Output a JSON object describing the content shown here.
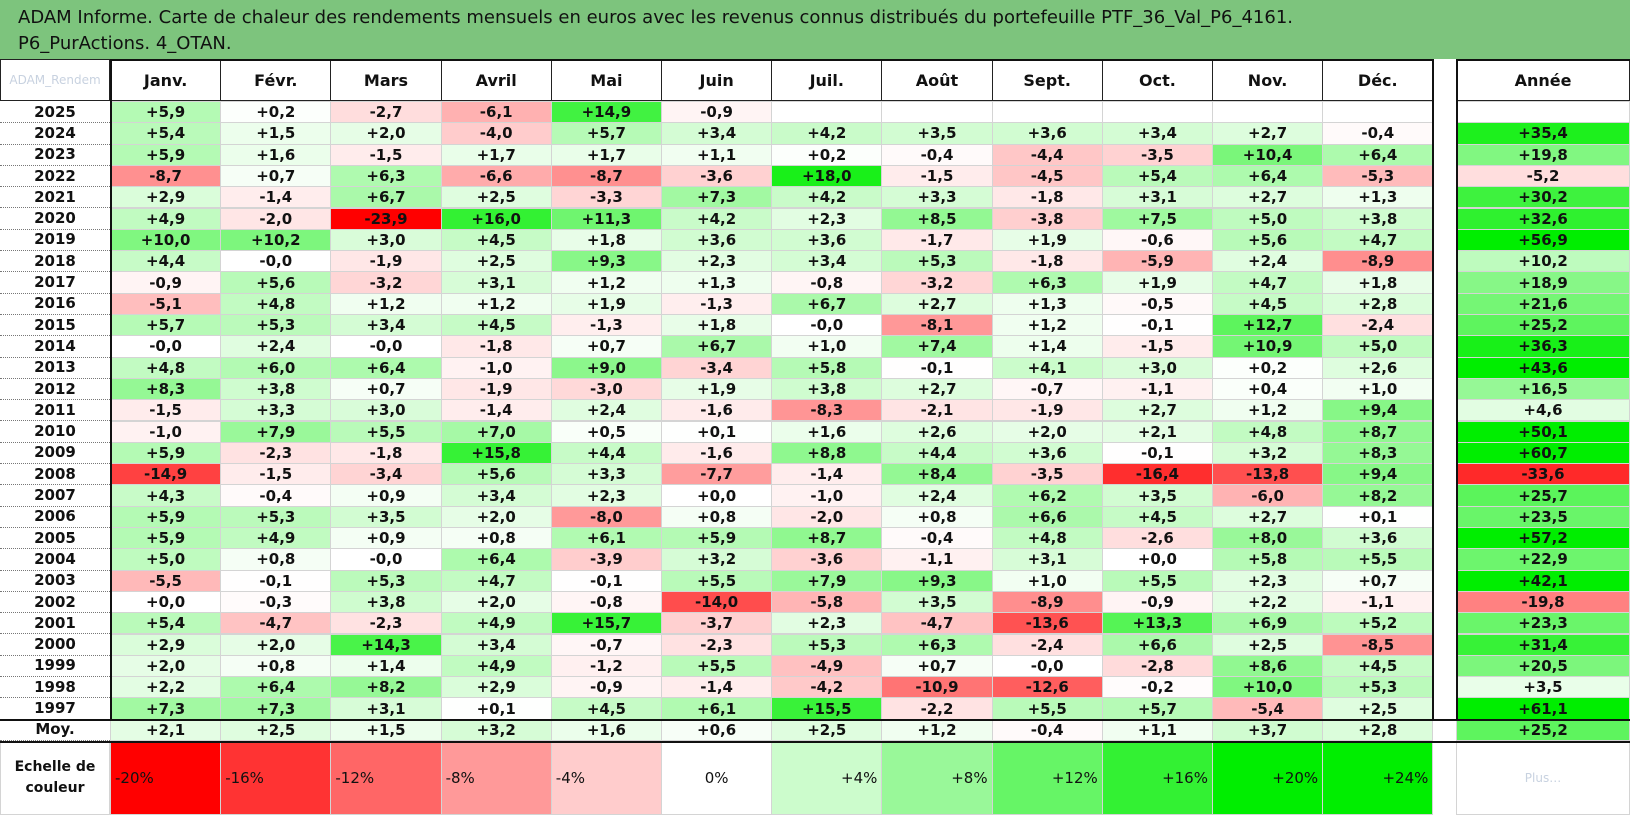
{
  "title": {
    "line1": "ADAM Informe. Carte de chaleur des rendements mensuels en euros avec les revenus connus distribués du portefeuille PTF_36_Val_P6_4161.",
    "line2": "P6_PurActions. 4_OTAN."
  },
  "corner_label": "ADAM_Rendem",
  "chart_data": {
    "type": "heatmap",
    "months": [
      "Janv.",
      "Févr.",
      "Mars",
      "Avril",
      "Mai",
      "Juin",
      "Juil.",
      "Août",
      "Sept.",
      "Oct.",
      "Nov.",
      "Déc."
    ],
    "year_header": "Année",
    "rows": [
      {
        "year": "2025",
        "values": [
          "+5,9",
          "+0,2",
          "-2,7",
          "-6,1",
          "+14,9",
          "-0,9",
          "",
          "",
          "",
          "",
          "",
          ""
        ],
        "annual": ""
      },
      {
        "year": "2024",
        "values": [
          "+5,4",
          "+1,5",
          "+2,0",
          "-4,0",
          "+5,7",
          "+3,4",
          "+4,2",
          "+3,5",
          "+3,6",
          "+3,4",
          "+2,7",
          "-0,4"
        ],
        "annual": "+35,4"
      },
      {
        "year": "2023",
        "values": [
          "+5,9",
          "+1,6",
          "-1,5",
          "+1,7",
          "+1,7",
          "+1,1",
          "+0,2",
          "-0,4",
          "-4,4",
          "-3,5",
          "+10,4",
          "+6,4"
        ],
        "annual": "+19,8"
      },
      {
        "year": "2022",
        "values": [
          "-8,7",
          "+0,7",
          "+6,3",
          "-6,6",
          "-8,7",
          "-3,6",
          "+18,0",
          "-1,5",
          "-4,5",
          "+5,4",
          "+6,4",
          "-5,3"
        ],
        "annual": "-5,2"
      },
      {
        "year": "2021",
        "values": [
          "+2,9",
          "-1,4",
          "+6,7",
          "+2,5",
          "-3,3",
          "+7,3",
          "+4,2",
          "+3,3",
          "-1,8",
          "+3,1",
          "+2,7",
          "+1,3"
        ],
        "annual": "+30,2"
      },
      {
        "year": "2020",
        "values": [
          "+4,9",
          "-2,0",
          "-23,9",
          "+16,0",
          "+11,3",
          "+4,2",
          "+2,3",
          "+8,5",
          "-3,8",
          "+7,5",
          "+5,0",
          "+3,8"
        ],
        "annual": "+32,6"
      },
      {
        "year": "2019",
        "values": [
          "+10,0",
          "+10,2",
          "+3,0",
          "+4,5",
          "+1,8",
          "+3,6",
          "+3,6",
          "-1,7",
          "+1,9",
          "-0,6",
          "+5,6",
          "+4,7"
        ],
        "annual": "+56,9"
      },
      {
        "year": "2018",
        "values": [
          "+4,4",
          "-0,0",
          "-1,9",
          "+2,5",
          "+9,3",
          "+2,3",
          "+3,4",
          "+5,3",
          "-1,8",
          "-5,9",
          "+2,4",
          "-8,9"
        ],
        "annual": "+10,2"
      },
      {
        "year": "2017",
        "values": [
          "-0,9",
          "+5,6",
          "-3,2",
          "+3,1",
          "+1,2",
          "+1,3",
          "-0,8",
          "-3,2",
          "+6,3",
          "+1,9",
          "+4,7",
          "+1,8"
        ],
        "annual": "+18,9"
      },
      {
        "year": "2016",
        "values": [
          "-5,1",
          "+4,8",
          "+1,2",
          "+1,2",
          "+1,9",
          "-1,3",
          "+6,7",
          "+2,7",
          "+1,3",
          "-0,5",
          "+4,5",
          "+2,8"
        ],
        "annual": "+21,6"
      },
      {
        "year": "2015",
        "values": [
          "+5,7",
          "+5,3",
          "+3,4",
          "+4,5",
          "-1,3",
          "+1,8",
          "-0,0",
          "-8,1",
          "+1,2",
          "-0,1",
          "+12,7",
          "-2,4"
        ],
        "annual": "+25,2"
      },
      {
        "year": "2014",
        "values": [
          "-0,0",
          "+2,4",
          "-0,0",
          "-1,8",
          "+0,7",
          "+6,7",
          "+1,0",
          "+7,4",
          "+1,4",
          "-1,5",
          "+10,9",
          "+5,0"
        ],
        "annual": "+36,3"
      },
      {
        "year": "2013",
        "values": [
          "+4,8",
          "+6,0",
          "+6,4",
          "-1,0",
          "+9,0",
          "-3,4",
          "+5,8",
          "-0,1",
          "+4,1",
          "+3,0",
          "+0,2",
          "+2,6"
        ],
        "annual": "+43,6"
      },
      {
        "year": "2012",
        "values": [
          "+8,3",
          "+3,8",
          "+0,7",
          "-1,9",
          "-3,0",
          "+1,9",
          "+3,8",
          "+2,7",
          "-0,7",
          "-1,1",
          "+0,4",
          "+1,0"
        ],
        "annual": "+16,5"
      },
      {
        "year": "2011",
        "values": [
          "-1,5",
          "+3,3",
          "+3,0",
          "-1,4",
          "+2,4",
          "-1,6",
          "-8,3",
          "-2,1",
          "-1,9",
          "+2,7",
          "+1,2",
          "+9,4"
        ],
        "annual": "+4,6"
      },
      {
        "year": "2010",
        "values": [
          "-1,0",
          "+7,9",
          "+5,5",
          "+7,0",
          "+0,5",
          "+0,1",
          "+1,6",
          "+2,6",
          "+2,0",
          "+2,1",
          "+4,8",
          "+8,7"
        ],
        "annual": "+50,1"
      },
      {
        "year": "2009",
        "values": [
          "+5,9",
          "-2,3",
          "-1,8",
          "+15,8",
          "+4,4",
          "-1,6",
          "+8,8",
          "+4,4",
          "+3,6",
          "-0,1",
          "+3,2",
          "+8,3"
        ],
        "annual": "+60,7"
      },
      {
        "year": "2008",
        "values": [
          "-14,9",
          "-1,5",
          "-3,4",
          "+5,6",
          "+3,3",
          "-7,7",
          "-1,4",
          "+8,4",
          "-3,5",
          "-16,4",
          "-13,8",
          "+9,4"
        ],
        "annual": "-33,6"
      },
      {
        "year": "2007",
        "values": [
          "+4,3",
          "-0,4",
          "+0,9",
          "+3,4",
          "+2,3",
          "+0,0",
          "-1,0",
          "+2,4",
          "+6,2",
          "+3,5",
          "-6,0",
          "+8,2"
        ],
        "annual": "+25,7"
      },
      {
        "year": "2006",
        "values": [
          "+5,9",
          "+5,3",
          "+3,5",
          "+2,0",
          "-8,0",
          "+0,8",
          "-2,0",
          "+0,8",
          "+6,6",
          "+4,5",
          "+2,7",
          "+0,1"
        ],
        "annual": "+23,5"
      },
      {
        "year": "2005",
        "values": [
          "+5,9",
          "+4,9",
          "+0,9",
          "+0,8",
          "+6,1",
          "+5,9",
          "+8,7",
          "-0,4",
          "+4,8",
          "-2,6",
          "+8,0",
          "+3,6"
        ],
        "annual": "+57,2"
      },
      {
        "year": "2004",
        "values": [
          "+5,0",
          "+0,8",
          "-0,0",
          "+6,4",
          "-3,9",
          "+3,2",
          "-3,6",
          "-1,1",
          "+3,1",
          "+0,0",
          "+5,8",
          "+5,5"
        ],
        "annual": "+22,9"
      },
      {
        "year": "2003",
        "values": [
          "-5,5",
          "-0,1",
          "+5,3",
          "+4,7",
          "-0,1",
          "+5,5",
          "+7,9",
          "+9,3",
          "+1,0",
          "+5,5",
          "+2,3",
          "+0,7"
        ],
        "annual": "+42,1"
      },
      {
        "year": "2002",
        "values": [
          "+0,0",
          "-0,3",
          "+3,8",
          "+2,0",
          "-0,8",
          "-14,0",
          "-5,8",
          "+3,5",
          "-8,9",
          "-0,9",
          "+2,2",
          "-1,1"
        ],
        "annual": "-19,8"
      },
      {
        "year": "2001",
        "values": [
          "+5,4",
          "-4,7",
          "-2,3",
          "+4,9",
          "+15,7",
          "-3,7",
          "+2,3",
          "-4,7",
          "-13,6",
          "+13,3",
          "+6,9",
          "+5,2"
        ],
        "annual": "+23,3"
      },
      {
        "year": "2000",
        "values": [
          "+2,9",
          "+2,0",
          "+14,3",
          "+3,4",
          "-0,7",
          "-2,3",
          "+5,3",
          "+6,3",
          "-2,4",
          "+6,6",
          "+2,5",
          "-8,5"
        ],
        "annual": "+31,4"
      },
      {
        "year": "1999",
        "values": [
          "+2,0",
          "+0,8",
          "+1,4",
          "+4,9",
          "-1,2",
          "+5,5",
          "-4,9",
          "+0,7",
          "-0,0",
          "-2,8",
          "+8,6",
          "+4,5"
        ],
        "annual": "+20,5"
      },
      {
        "year": "1998",
        "values": [
          "+2,2",
          "+6,4",
          "+8,2",
          "+2,9",
          "-0,9",
          "-1,4",
          "-4,2",
          "-10,9",
          "-12,6",
          "-0,2",
          "+10,0",
          "+5,3"
        ],
        "annual": "+3,5"
      },
      {
        "year": "1997",
        "values": [
          "+7,3",
          "+7,3",
          "+3,1",
          "+0,1",
          "+4,5",
          "+6,1",
          "+15,5",
          "-2,2",
          "+5,5",
          "+5,7",
          "-5,4",
          "+2,5"
        ],
        "annual": "+61,1"
      }
    ],
    "average": {
      "label": "Moy.",
      "values": [
        "+2,1",
        "+2,5",
        "+1,5",
        "+3,2",
        "+1,6",
        "+0,6",
        "+2,5",
        "+1,2",
        "-0,4",
        "+1,1",
        "+3,7",
        "+2,8"
      ],
      "annual": "+25,2"
    },
    "color_scale": {
      "label": "Echelle de couleur",
      "steps": [
        "-20%",
        "-16%",
        "-12%",
        "-8%",
        "-4%",
        "0%",
        "+4%",
        "+8%",
        "+12%",
        "+16%",
        "+20%",
        "+24%"
      ],
      "trailing_label": "Plus…"
    },
    "colors": {
      "negative_max": "#ff0000",
      "neutral": "#ffffff",
      "positive_max": "#00ee00"
    }
  }
}
